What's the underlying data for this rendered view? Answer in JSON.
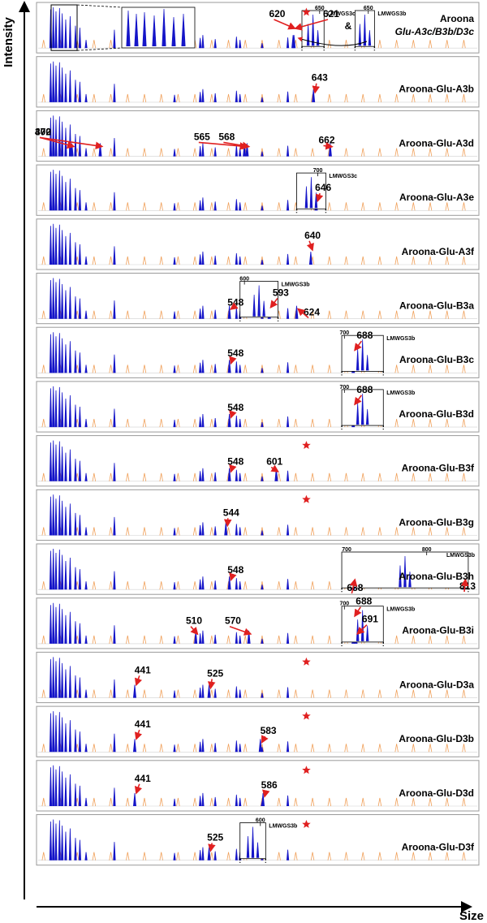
{
  "chart_data": {
    "type": "electropherogram-panels",
    "xlabel": "Size",
    "ylabel": "Intensity",
    "colors": {
      "sample": "#1515c8",
      "standard": "#f0a05a",
      "arrow": "#e02020",
      "star": "#e02020"
    },
    "top_inset_connector": "&",
    "panels": [
      {
        "title": "Aroona",
        "title2": "Glu-A3c/B3b/D3c",
        "labels": [
          {
            "text": "620",
            "x": 620,
            "lx": 602,
            "ly": 18
          },
          {
            "text": "621",
            "x": 621,
            "lx": 663,
            "ly": 18
          }
        ],
        "star": true,
        "insets": [
          {
            "x0": 630,
            "x1": 655,
            "tick": 650,
            "tick_label": "650",
            "name": "LMWGS3c"
          },
          {
            "x0": 690,
            "x1": 712,
            "tick": 705,
            "tick_label": "650",
            "name": "LMWGS3b"
          }
        ]
      },
      {
        "title": "Aroona-Glu-A3b",
        "labels": [
          {
            "text": "643",
            "x": 643,
            "lx": 650,
            "ly": 30
          }
        ],
        "star": false,
        "insets": []
      },
      {
        "title": "Aroona-Glu-A3d",
        "labels": [
          {
            "text": "370",
            "x": 370,
            "lx": 58,
            "ly": 30
          },
          {
            "text": "402",
            "x": 402,
            "lx": 104,
            "ly": 30
          },
          {
            "text": "565",
            "x": 565,
            "lx": 517,
            "ly": 36
          },
          {
            "text": "568",
            "x": 568,
            "lx": 545,
            "ly": 36
          },
          {
            "text": "662",
            "x": 662,
            "lx": 658,
            "ly": 40
          }
        ],
        "star": false,
        "insets": []
      },
      {
        "title": "Aroona-Glu-A3e",
        "labels": [
          {
            "text": "646",
            "x": 646,
            "lx": 654,
            "ly": 32
          }
        ],
        "star": false,
        "insets": [
          {
            "x0": 624,
            "x1": 657,
            "tick": 648,
            "tick_label": "700",
            "name": "LMWGS3c"
          }
        ]
      },
      {
        "title": "Aroona-Glu-A3f",
        "labels": [
          {
            "text": "640",
            "x": 640,
            "lx": 642,
            "ly": 24
          }
        ],
        "star": false,
        "insets": []
      },
      {
        "title": "Aroona-Glu-B3a",
        "labels": [
          {
            "text": "548",
            "x": 548,
            "lx": 555,
            "ly": 40
          },
          {
            "text": "593",
            "x": 593,
            "lx": 606,
            "ly": 28
          },
          {
            "text": "624",
            "x": 624,
            "lx": 641,
            "ly": 52
          }
        ],
        "star": false,
        "insets": [
          {
            "x0": 560,
            "x1": 603,
            "tick": 565,
            "tick_label": "600",
            "name": "LMWGS3b"
          }
        ]
      },
      {
        "title": "Aroona-Glu-B3c",
        "labels": [
          {
            "text": "548",
            "x": 548,
            "lx": 555,
            "ly": 36
          },
          {
            "text": "688",
            "x": 688,
            "lx": 701,
            "ly": 14
          }
        ],
        "star": false,
        "insets": [
          {
            "x0": 675,
            "x1": 722,
            "tick": 678,
            "tick_label": "700",
            "name": "LMWGS3b"
          }
        ]
      },
      {
        "title": "Aroona-Glu-B3d",
        "labels": [
          {
            "text": "548",
            "x": 548,
            "lx": 555,
            "ly": 36
          },
          {
            "text": "688",
            "x": 688,
            "lx": 701,
            "ly": 14
          }
        ],
        "star": false,
        "insets": [
          {
            "x0": 675,
            "x1": 722,
            "tick": 678,
            "tick_label": "700",
            "name": "LMWGS3b"
          }
        ]
      },
      {
        "title": "Aroona-Glu-B3f",
        "labels": [
          {
            "text": "548",
            "x": 548,
            "lx": 555,
            "ly": 36
          },
          {
            "text": "601",
            "x": 601,
            "lx": 599,
            "ly": 36
          }
        ],
        "star": true,
        "insets": []
      },
      {
        "title": "Aroona-Glu-B3g",
        "labels": [
          {
            "text": "544",
            "x": 544,
            "lx": 550,
            "ly": 32
          }
        ],
        "star": true,
        "insets": []
      },
      {
        "title": "Aroona-Glu-B3h",
        "labels": [
          {
            "text": "548",
            "x": 548,
            "lx": 555,
            "ly": 36
          },
          {
            "text": "688",
            "x": 688,
            "lx": 690,
            "ly": 58
          },
          {
            "text": "813",
            "x": 813,
            "lx": 823,
            "ly": 56
          }
        ],
        "star": false,
        "insets": [
          {
            "x0": 675,
            "x1": 818,
            "tick": 771,
            "tick_label": "800",
            "name": "LMWGS3b",
            "tick0_label": "700"
          }
        ]
      },
      {
        "title": "Aroona-Glu-B3i",
        "labels": [
          {
            "text": "510",
            "x": 510,
            "lx": 508,
            "ly": 32
          },
          {
            "text": "570",
            "x": 570,
            "lx": 552,
            "ly": 32
          },
          {
            "text": "688",
            "x": 688,
            "lx": 700,
            "ly": 8
          },
          {
            "text": "691",
            "x": 691,
            "lx": 707,
            "ly": 30
          }
        ],
        "star": false,
        "insets": [
          {
            "x0": 675,
            "x1": 722,
            "tick": 678,
            "tick_label": "700",
            "name": "LMWGS3b"
          }
        ]
      },
      {
        "title": "Aroona-Glu-D3a",
        "labels": [
          {
            "text": "441",
            "x": 441,
            "lx": 450,
            "ly": 26
          },
          {
            "text": "525",
            "x": 525,
            "lx": 532,
            "ly": 30
          }
        ],
        "star": true,
        "insets": []
      },
      {
        "title": "Aroona-Glu-D3b",
        "labels": [
          {
            "text": "441",
            "x": 441,
            "lx": 450,
            "ly": 26
          },
          {
            "text": "583",
            "x": 583,
            "lx": 592,
            "ly": 34
          }
        ],
        "star": true,
        "insets": []
      },
      {
        "title": "Aroona-Glu-D3d",
        "labels": [
          {
            "text": "441",
            "x": 441,
            "lx": 450,
            "ly": 26
          },
          {
            "text": "586",
            "x": 586,
            "lx": 593,
            "ly": 34
          }
        ],
        "star": true,
        "insets": []
      },
      {
        "title": "Aroona-Glu-D3f",
        "labels": [
          {
            "text": "525",
            "x": 525,
            "lx": 532,
            "ly": 32
          }
        ],
        "star": true,
        "insets": [
          {
            "x0": 560,
            "x1": 589,
            "tick": 583,
            "tick_label": "600",
            "name": "LMWGS3b"
          }
        ]
      }
    ]
  }
}
